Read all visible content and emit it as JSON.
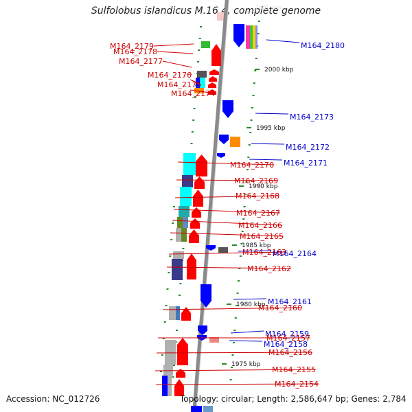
{
  "title": "Sulfolobus islandicus M.16.4, complete genome",
  "accession_text": "Accession: NC_012726",
  "topology_text": "Topology: circular; Length: 2,586,647 bp; Genes: 2,784",
  "colors": {
    "backbone": "#8a8a8a",
    "plus_strand": "#ff0000",
    "minus_strand": "#0000ff",
    "left_labels": "#cc0000",
    "right_labels": "#0000cc",
    "ticks": "#2a8a2a",
    "cyan": "#00ffff",
    "navy": "#3a3a8a",
    "grey": "#b0b0b0",
    "orange": "#ff8c00",
    "green": "#33bb33",
    "pink": "#ee8888",
    "olive": "#668822",
    "darkgrey": "#555555",
    "magenta": "#ff33aa"
  },
  "scale_labels": [
    "2000 kbp",
    "1995 kbp",
    "1990 kbp",
    "1985 kbp",
    "1980 kbp",
    "1975 kbp"
  ],
  "genes_left": [
    "M164_2179",
    "M164_2178",
    "M164_2177",
    "M164_2176",
    "M164_2175",
    "M164_2174",
    "M164_2170",
    "M164_2169",
    "M164_2168",
    "M164_2167",
    "M164_2166",
    "M164_2165",
    "M164_2163",
    "M164_2162",
    "M164_2160",
    "M164_2157",
    "M164_2156",
    "M164_2155",
    "M164_2154"
  ],
  "genes_right": [
    "M164_2180",
    "M164_2173",
    "M164_2172",
    "M164_2171",
    "M164_2164",
    "M164_2161",
    "M164_2159",
    "M164_2158"
  ]
}
